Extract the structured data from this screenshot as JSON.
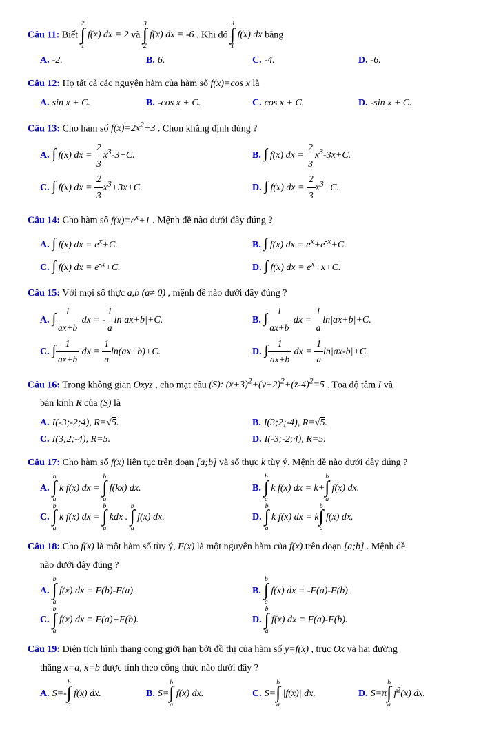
{
  "q11": {
    "label": "Câu 11:",
    "text1": "Biết ",
    "m1": "\\displaystyle\\int_{1}^{2} f(x)\\,dx = 2",
    "text2": " và ",
    "m2": "\\displaystyle\\int_{2}^{3} f(x)\\,dx = -6",
    "text3": ". Khi đó ",
    "m3": "\\displaystyle\\int_{1}^{3} f(x)\\,dx",
    "text4": " bằng",
    "a": "-2.",
    "b": "6.",
    "c": "-4.",
    "d": "-6."
  },
  "q12": {
    "label": "Câu 12:",
    "text": "Họ tất cả các nguyên hàm của hàm số ",
    "m": "f(x)=\\cos x",
    "text2": " là",
    "a": "\\sin x + C.",
    "b": "-\\cos x + C.",
    "c": "\\cos x + C.",
    "d": "-\\sin x + C."
  },
  "q13": {
    "label": "Câu 13:",
    "text": "Cho hàm số ",
    "m": "f(x)=2x^{2}+3",
    "text2": ". Chọn khẳng định đúng ?",
    "a": "\\displaystyle\\int f(x)\\,dx = \\frac{2}{3}x^{3}-3+C.",
    "b": "\\displaystyle\\int f(x)\\,dx = \\frac{2}{3}x^{3}-3x+C.",
    "c": "\\displaystyle\\int f(x)\\,dx = \\frac{2}{3}x^{3}+3x+C.",
    "d": "\\displaystyle\\int f(x)\\,dx = \\frac{2}{3}x^{3}+C."
  },
  "q14": {
    "label": "Câu 14:",
    "text": "Cho hàm số ",
    "m": "f(x)=e^{x}+1",
    "text2": ". Mệnh đề nào dưới đây đúng ?",
    "a": "\\displaystyle\\int f(x)\\,dx = e^{x}+C.",
    "b": "\\displaystyle\\int f(x)\\,dx = e^{x}+e^{-x}+C.",
    "c": "\\displaystyle\\int f(x)\\,dx = e^{-x}+C.",
    "d": "\\displaystyle\\int f(x)\\,dx = e^{x}+x+C."
  },
  "q15": {
    "label": "Câu 15:",
    "text": "Với mọi số thực ",
    "m": "a,b\\,(a\\neq 0)",
    "text2": ", mệnh đề nào dưới đây đúng ?",
    "a": "\\displaystyle\\int\\frac{1}{ax+b}\\,dx = -\\frac{1}{a}\\ln|ax+b|+C.",
    "b": "\\displaystyle\\int\\frac{1}{ax+b}\\,dx = \\frac{1}{a}\\ln|ax+b|+C.",
    "c": "\\displaystyle\\int\\frac{1}{ax+b}\\,dx = \\frac{1}{a}\\ln(ax+b)+C.",
    "d": "\\displaystyle\\int\\frac{1}{ax+b}\\,dx = \\frac{1}{a}\\ln|ax-b|+C."
  },
  "q16": {
    "label": "Câu 16:",
    "text": "Trong không gian ",
    "m1": "Oxyz",
    "text2": ", cho mặt cầu ",
    "m2": "(S):\\;(x+3)^{2}+(y+2)^{2}+(z-4)^{2}=5",
    "text3": ". Tọa độ tâm ",
    "m3": "I",
    "text4": " và",
    "sub": "bán kính ",
    "m4": "R",
    "subtext": " của ",
    "m5": "(S)",
    "subtext2": " là",
    "a": "I(-3;-2;4),\\; R=\\sqrt{5}.",
    "b": "I(3;2;-4),\\; R=\\sqrt{5}.",
    "c": "I(3;2;-4),\\; R=5.",
    "d": "I(-3;-2;4),\\; R=5."
  },
  "q17": {
    "label": "Câu 17:",
    "text": "Cho hàm số ",
    "m1": "f(x)",
    "text2": " liên tục trên đoạn ",
    "m2": "[a;b]",
    "text3": " và số thực ",
    "m3": "k",
    "text4": " tùy ý. Mệnh đề nào dưới đây đúng ?",
    "a": "\\displaystyle\\int_{a}^{b} k\\,f(x)\\,dx = \\int_{a}^{b} f(kx)\\,dx.",
    "b": "\\displaystyle\\int_{a}^{b} k\\,f(x)\\,dx = k+\\int_{a}^{b} f(x)\\,dx.",
    "c": "\\displaystyle\\int_{a}^{b} k\\,f(x)\\,dx = \\int_{a}^{b} kdx . \\int_{a}^{b} f(x)\\,dx.",
    "d": "\\displaystyle\\int_{a}^{b} k\\,f(x)\\,dx = k\\int_{a}^{b} f(x)\\,dx."
  },
  "q18": {
    "label": "Câu 18:",
    "text": "Cho ",
    "m1": "f(x)",
    "text2": " là một hàm số tùy ý, ",
    "m2": "F(x)",
    "text3": " là một nguyên hàm của ",
    "m3": "f(x)",
    "text4": " trên đoạn",
    "m4": "[a;b]",
    "text5": ". Mệnh đề",
    "sub": "nào dưới đây đúng ?",
    "a": "\\displaystyle\\int_{a}^{b} f(x)\\,dx = F(b)-F(a).",
    "b": "\\displaystyle\\int_{a}^{b} f(x)\\,dx = -F(a)-F(b).",
    "c": "\\displaystyle\\int_{a}^{b} f(x)\\,dx = F(a)+F(b).",
    "d": "\\displaystyle\\int_{a}^{b} f(x)\\,dx = F(a)-F(b)."
  },
  "q19": {
    "label": "Câu 19:",
    "text": "Diện tích hình thang cong giới hạn bởi đồ thị của hàm số ",
    "m1": "y=f(x)",
    "text2": ", trục ",
    "m2": "Ox",
    "text3": " và hai đường",
    "sub": "thẳng ",
    "m3": "x=a, x=b",
    "subtext": " được tính theo công thức nào dưới đây ?",
    "a": "S=-\\displaystyle\\int_{a}^{b} f(x)\\,dx.",
    "b": "S=\\displaystyle\\int_{a}^{b} f(x)\\,dx.",
    "c": "S=\\displaystyle\\int_{a}^{b} |f(x)|\\,dx.",
    "d": "S=\\pi\\displaystyle\\int_{a}^{b} f^{2}(x)\\,dx."
  }
}
